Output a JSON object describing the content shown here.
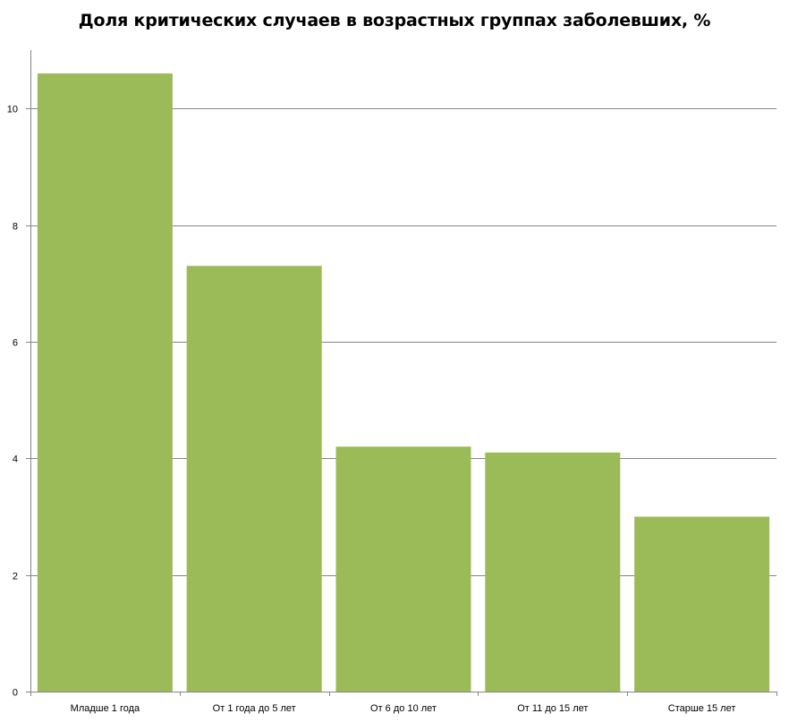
{
  "chart_data": {
    "type": "bar",
    "title": "Доля критических случаев в возрастных группах заболевших, %",
    "categories": [
      "Младше 1 года",
      "От 1 года до 5 лет",
      "От 6 до 10 лет",
      "От 11 до 15 лет",
      "Старше 15 лет"
    ],
    "values": [
      10.6,
      7.3,
      4.2,
      4.1,
      3.0
    ],
    "ylim": [
      0,
      11
    ],
    "yticks": [
      0,
      2,
      4,
      6,
      8,
      10
    ],
    "xlabel": "",
    "ylabel": "",
    "grid": true,
    "legend": "none",
    "bar_color": "#9bbb59",
    "grid_color": "#868686",
    "axis_color": "#868686"
  }
}
